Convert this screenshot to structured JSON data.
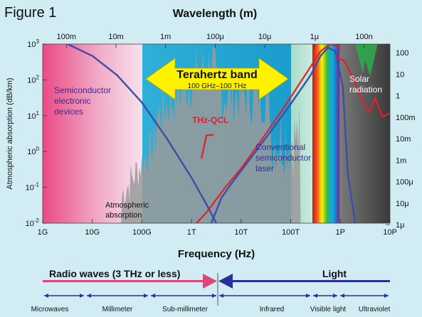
{
  "figure_label": "Figure 1",
  "chart_data": {
    "type": "line",
    "title": "Figure 1",
    "top_axis": {
      "label": "Wavelength (m)",
      "ticks": [
        "100m",
        "10m",
        "1m",
        "100μ",
        "10μ",
        "1μ",
        "100n"
      ],
      "tick_freq_exp": [
        9.477,
        10.477,
        11.477,
        12.477,
        13.477,
        14.477,
        15.477
      ]
    },
    "x_axis": {
      "label": "Frequency (Hz)",
      "scale": "log",
      "range_exp": [
        9,
        16
      ],
      "ticks": [
        "1G",
        "10G",
        "100G",
        "1T",
        "10T",
        "100T",
        "1P",
        "10P"
      ]
    },
    "y_axis": {
      "label": "Atmospheric absorption (dB/km)",
      "scale": "log",
      "range_exp": [
        -2,
        3
      ],
      "ticks": [
        "10^-2",
        "10^-1",
        "10^0",
        "10^1",
        "10^2",
        "10^3"
      ]
    },
    "right_axis": {
      "ticks": [
        "100",
        "10",
        "1",
        "100m",
        "10m",
        "1m",
        "100μ",
        "10μ",
        "1μ"
      ]
    },
    "band": {
      "label": "Terahertz band",
      "sublabel": "100 GHz–100 THz",
      "range_exp": [
        11,
        14
      ]
    },
    "annotations": {
      "semiconductor": [
        "Semiconductor",
        "electronic",
        "devices"
      ],
      "atmospheric": [
        "Atmospheric",
        "absorption"
      ],
      "thz_qcl": [
        "THz-QCL"
      ],
      "conventional": [
        "Conventional",
        "semiconductor",
        "laser"
      ],
      "solar": [
        "Solar",
        "radiation"
      ]
    },
    "series": [
      {
        "id": "electronic",
        "color": "#3a4fa8",
        "x": [
          9.5,
          10,
          10.5,
          11,
          11.5,
          12,
          12.3,
          12.5
        ],
        "y": [
          3,
          2.67,
          2.13,
          1.37,
          0.37,
          -0.73,
          -1.47,
          -2
        ]
      },
      {
        "id": "conventional-laser",
        "color": "#3a4fa8",
        "x": [
          12.4,
          12.6,
          12.8,
          13.2,
          13.6,
          14,
          14.4,
          14.6,
          14.75,
          14.9,
          15.05,
          15.15,
          15.3
        ],
        "y": [
          -2,
          -1.3,
          -0.9,
          -0.17,
          0.57,
          1.33,
          2.13,
          2.67,
          2.9,
          2.8,
          1.8,
          -0.6,
          -2
        ]
      },
      {
        "id": "thz-qcl",
        "color": "#e0202c",
        "x": [
          12.1,
          12.3,
          12.7,
          13,
          13.4,
          13.8,
          14.1,
          14.4,
          14.6,
          14.8,
          15
        ],
        "y": [
          -2,
          -1.7,
          -0.97,
          -0.47,
          0.3,
          1.1,
          1.73,
          2.37,
          2.8,
          3,
          2.9
        ]
      },
      {
        "id": "thz-qcl-short",
        "color": "#e0202c",
        "x": [
          12.2,
          12.3,
          12.45
        ],
        "y": [
          -0.2,
          0.45,
          0.47
        ]
      },
      {
        "id": "solar-radiation",
        "color": "#e0202c",
        "x": [
          14.9,
          15.1,
          15.3,
          15.5,
          15.6,
          15.7,
          15.85,
          16
        ],
        "y": [
          2.67,
          2.5,
          1.9,
          1.23,
          1.1,
          1.5,
          0.97,
          1.07
        ]
      }
    ]
  },
  "bottom_scale": {
    "radio_label": "Radio waves (3 THz or less)",
    "light_label": "Light",
    "bands": [
      "Microwaves",
      "Millimeter",
      "Sub-millimeter",
      "Infrared",
      "Visible light",
      "Ultraviolet"
    ]
  },
  "colors": {
    "background": "#d2ecf3",
    "radio_arrow": "#e0457a",
    "light_arrow": "#2a2f9c",
    "band_arrow_fill": "#fff200",
    "curve_blue": "#3a4fa8",
    "curve_red": "#e0202c"
  }
}
